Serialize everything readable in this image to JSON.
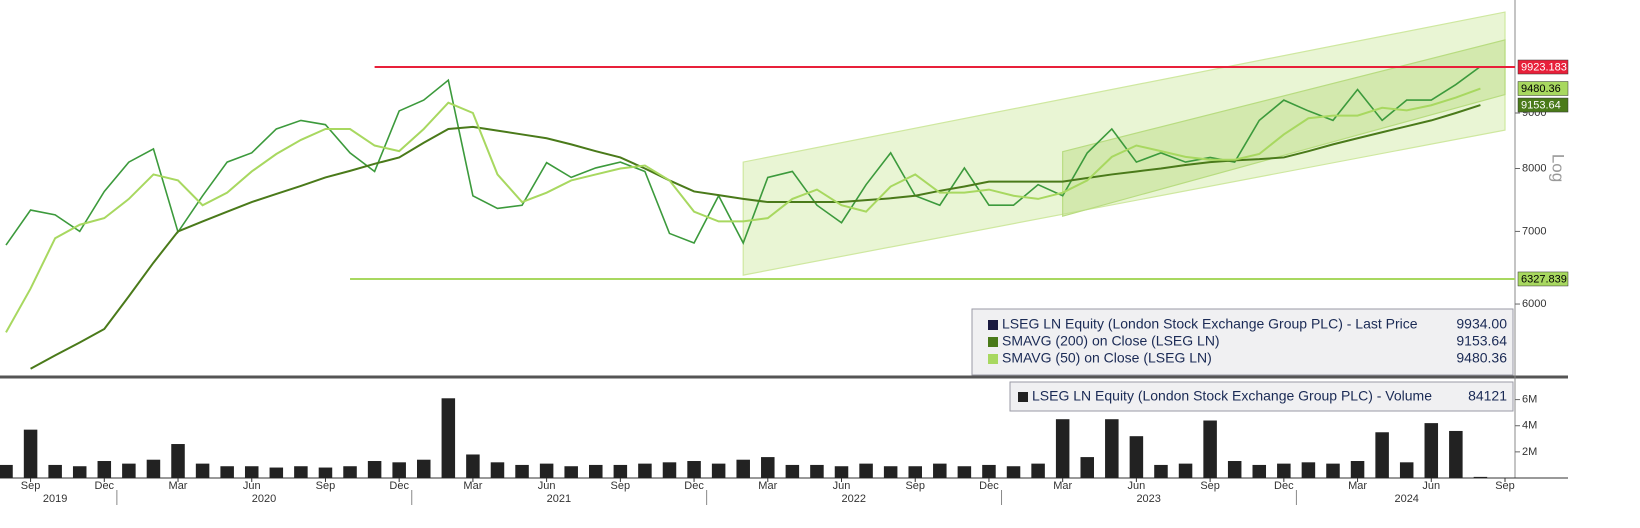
{
  "chart_data": [
    {
      "type": "line",
      "log_scale": true,
      "y_scale_label": "Log",
      "x": [
        "2019-08",
        "2019-09",
        "2019-10",
        "2019-11",
        "2019-12",
        "2020-01",
        "2020-02",
        "2020-03",
        "2020-04",
        "2020-05",
        "2020-06",
        "2020-07",
        "2020-08",
        "2020-09",
        "2020-10",
        "2020-11",
        "2020-12",
        "2021-01",
        "2021-02",
        "2021-03",
        "2021-04",
        "2021-05",
        "2021-06",
        "2021-07",
        "2021-08",
        "2021-09",
        "2021-10",
        "2021-11",
        "2021-12",
        "2022-01",
        "2022-02",
        "2022-03",
        "2022-04",
        "2022-05",
        "2022-06",
        "2022-07",
        "2022-08",
        "2022-09",
        "2022-10",
        "2022-11",
        "2022-12",
        "2023-01",
        "2023-02",
        "2023-03",
        "2023-04",
        "2023-05",
        "2023-06",
        "2023-07",
        "2023-08",
        "2023-09",
        "2023-10",
        "2023-11",
        "2023-12",
        "2024-01",
        "2024-02",
        "2024-03",
        "2024-04",
        "2024-05",
        "2024-06",
        "2024-07",
        "2024-08"
      ],
      "xlim": [
        "2019-08",
        "2024-09"
      ],
      "ylim": [
        5150,
        11440
      ],
      "yticks": [
        6000,
        7000,
        8000,
        9000
      ],
      "series": [
        {
          "name": "LSEG LN Equity (London Stock Exchange Group PLC) - Last Price",
          "legend_value": "9934.00",
          "color": "#3c9a3c",
          "legend_color": "#1a1a40",
          "values": [
            6800,
            7325,
            7250,
            7000,
            7620,
            8110,
            8340,
            6990,
            7550,
            8110,
            8270,
            8700,
            8860,
            8780,
            8270,
            7950,
            9040,
            9250,
            9650,
            7550,
            7350,
            7400,
            8100,
            7850,
            8010,
            8110,
            7950,
            6970,
            6830,
            7550,
            6830,
            7850,
            7950,
            7400,
            7130,
            7730,
            8270,
            7550,
            7400,
            8010,
            7400,
            7400,
            7730,
            7550,
            8270,
            8700,
            8110,
            8270,
            8110,
            8190,
            8110,
            8860,
            9250,
            9040,
            8860,
            9460,
            8860,
            9250,
            9250,
            9560,
            9934
          ]
        },
        {
          "name": "SMAVG (200)  on Close (LSEG LN)",
          "color": "#4a7a1a",
          "tag_text_color": "#ffffff",
          "values": [
            null,
            5230,
            5380,
            5530,
            5690,
            6100,
            6550,
            7000,
            7150,
            7300,
            7450,
            7580,
            7710,
            7850,
            7960,
            8080,
            8190,
            8450,
            8700,
            8740,
            8670,
            8600,
            8530,
            8420,
            8300,
            8190,
            8000,
            7800,
            7620,
            7560,
            7500,
            7450,
            7450,
            7450,
            7450,
            7480,
            7510,
            7550,
            7630,
            7700,
            7780,
            7780,
            7780,
            7780,
            7840,
            7900,
            7950,
            8000,
            8060,
            8110,
            8140,
            8160,
            8190,
            8300,
            8420,
            8530,
            8640,
            8750,
            8860,
            9000,
            9153.64
          ]
        },
        {
          "name": "SMAVG (50)  on Close (LSEG LN)",
          "color": "#a8d860",
          "tag_text_color": "#000000",
          "values": [
            5650,
            6200,
            6900,
            7100,
            7200,
            7500,
            7900,
            7800,
            7400,
            7600,
            7950,
            8250,
            8500,
            8700,
            8700,
            8400,
            8300,
            8700,
            9200,
            9000,
            7900,
            7450,
            7600,
            7800,
            7900,
            8000,
            8050,
            7800,
            7300,
            7150,
            7150,
            7200,
            7500,
            7650,
            7400,
            7300,
            7700,
            7900,
            7600,
            7600,
            7650,
            7550,
            7500,
            7600,
            7800,
            8200,
            8400,
            8300,
            8200,
            8150,
            8150,
            8250,
            8600,
            8900,
            8950,
            8950,
            9100,
            9050,
            9150,
            9300,
            9480.36
          ]
        }
      ],
      "levels": [
        {
          "value": 9923.183,
          "start": "2020-11",
          "color": "#e8203a",
          "tag_text_color": "#ffffff"
        },
        {
          "value": 6327.839,
          "start": "2020-10",
          "color": "#a8d860",
          "tag_text_color": "#000000"
        }
      ],
      "channels": [
        {
          "x": [
            "2022-02",
            "2024-09"
          ],
          "lower": [
            6380,
            8680
          ],
          "upper": [
            8110,
            11150
          ],
          "color": "#cfe8a0"
        },
        {
          "x": [
            "2023-03",
            "2024-09"
          ],
          "lower": [
            7230,
            9360
          ],
          "upper": [
            8290,
            10510
          ],
          "color": "#b8dc80"
        }
      ]
    },
    {
      "type": "bar",
      "x": [
        "2019-08",
        "2019-09",
        "2019-10",
        "2019-11",
        "2019-12",
        "2020-01",
        "2020-02",
        "2020-03",
        "2020-04",
        "2020-05",
        "2020-06",
        "2020-07",
        "2020-08",
        "2020-09",
        "2020-10",
        "2020-11",
        "2020-12",
        "2021-01",
        "2021-02",
        "2021-03",
        "2021-04",
        "2021-05",
        "2021-06",
        "2021-07",
        "2021-08",
        "2021-09",
        "2021-10",
        "2021-11",
        "2021-12",
        "2022-01",
        "2022-02",
        "2022-03",
        "2022-04",
        "2022-05",
        "2022-06",
        "2022-07",
        "2022-08",
        "2022-09",
        "2022-10",
        "2022-11",
        "2022-12",
        "2023-01",
        "2023-02",
        "2023-03",
        "2023-04",
        "2023-05",
        "2023-06",
        "2023-07",
        "2023-08",
        "2023-09",
        "2023-10",
        "2023-11",
        "2023-12",
        "2024-01",
        "2024-02",
        "2024-03",
        "2024-04",
        "2024-05",
        "2024-06",
        "2024-07",
        "2024-08"
      ],
      "xlim": [
        "2019-08",
        "2024-09"
      ],
      "ylim": [
        0,
        7500000
      ],
      "yticks": [
        {
          "value": 2000000,
          "label": "2M"
        },
        {
          "value": 4000000,
          "label": "4M"
        },
        {
          "value": 6000000,
          "label": "6M"
        }
      ],
      "xticks": [
        {
          "value": "2019-09",
          "label": "Sep"
        },
        {
          "value": "2019-12",
          "label": "Dec"
        },
        {
          "value": "2020-03",
          "label": "Mar"
        },
        {
          "value": "2020-06",
          "label": "Jun"
        },
        {
          "value": "2020-09",
          "label": "Sep"
        },
        {
          "value": "2020-12",
          "label": "Dec"
        },
        {
          "value": "2021-03",
          "label": "Mar"
        },
        {
          "value": "2021-06",
          "label": "Jun"
        },
        {
          "value": "2021-09",
          "label": "Sep"
        },
        {
          "value": "2021-12",
          "label": "Dec"
        },
        {
          "value": "2022-03",
          "label": "Mar"
        },
        {
          "value": "2022-06",
          "label": "Jun"
        },
        {
          "value": "2022-09",
          "label": "Sep"
        },
        {
          "value": "2022-12",
          "label": "Dec"
        },
        {
          "value": "2023-03",
          "label": "Mar"
        },
        {
          "value": "2023-06",
          "label": "Jun"
        },
        {
          "value": "2023-09",
          "label": "Sep"
        },
        {
          "value": "2023-12",
          "label": "Dec"
        },
        {
          "value": "2024-03",
          "label": "Mar"
        },
        {
          "value": "2024-06",
          "label": "Jun"
        },
        {
          "value": "2024-09",
          "label": "Sep"
        }
      ],
      "years": [
        "2019",
        "2020",
        "2021",
        "2022",
        "2023",
        "2024"
      ],
      "series": [
        {
          "name": "LSEG LN Equity (London Stock Exchange Group PLC) - Volume",
          "color": "#222222",
          "values": [
            1000000,
            3700000,
            1000000,
            900000,
            1300000,
            1100000,
            1400000,
            2600000,
            1100000,
            900000,
            900000,
            800000,
            900000,
            800000,
            900000,
            1300000,
            1200000,
            1400000,
            6100000,
            1800000,
            1200000,
            1000000,
            1100000,
            900000,
            1000000,
            1000000,
            1100000,
            1200000,
            1300000,
            1100000,
            1400000,
            1600000,
            1000000,
            1000000,
            900000,
            1100000,
            900000,
            900000,
            1100000,
            900000,
            1000000,
            900000,
            1100000,
            4500000,
            1600000,
            4500000,
            3200000,
            1000000,
            1100000,
            4400000,
            1300000,
            1000000,
            1100000,
            1200000,
            1100000,
            1300000,
            3500000,
            1200000,
            4200000,
            3600000,
            84121
          ]
        }
      ]
    }
  ]
}
